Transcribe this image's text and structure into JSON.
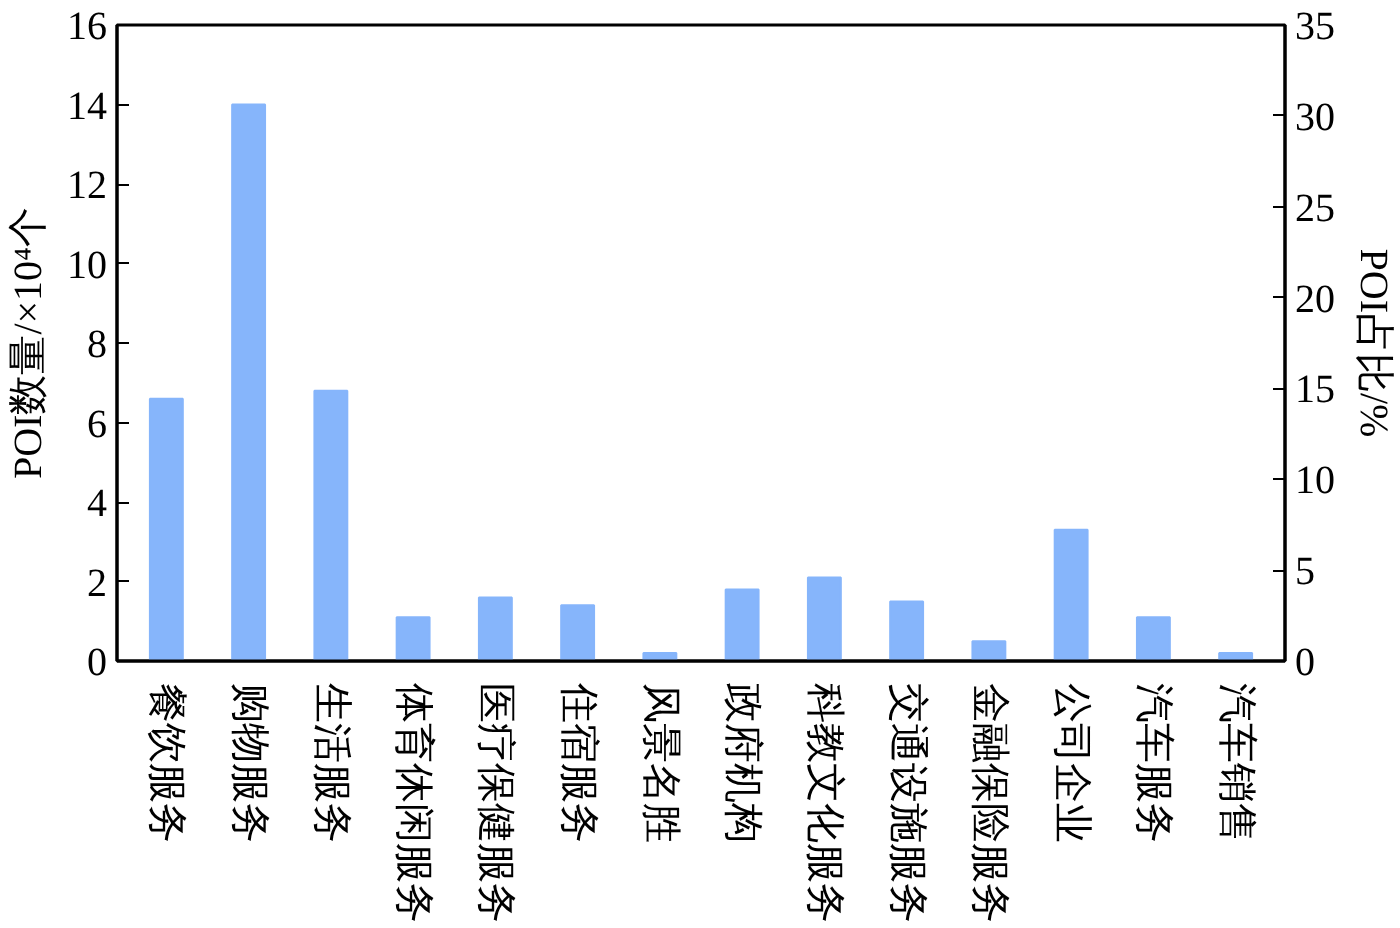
{
  "chart_data": {
    "type": "bar",
    "ylabel": "POI数量/×10⁴个",
    "y2label": "POI占比/%",
    "categories": [
      "餐饮服务",
      "购物服务",
      "生活服务",
      "体育休闲服务",
      "医疗保健服务",
      "住宿服务",
      "风景名胜",
      "政府机构",
      "科教文化服务",
      "交通设施服务",
      "金融保险服务",
      "公司企业",
      "汽车服务",
      "汽车销售"
    ],
    "values": [
      6.6,
      14.0,
      6.8,
      1.1,
      1.6,
      1.4,
      0.2,
      1.8,
      2.1,
      1.5,
      0.5,
      3.3,
      1.1,
      0.2
    ],
    "color": "#86b5fb",
    "ylim": [
      0,
      16
    ],
    "yticks": [
      0,
      2,
      4,
      6,
      8,
      10,
      12,
      14,
      16
    ],
    "y2lim": [
      0,
      35
    ],
    "y2ticks": [
      0,
      5,
      10,
      15,
      20,
      25,
      30,
      35
    ],
    "grid": false
  }
}
